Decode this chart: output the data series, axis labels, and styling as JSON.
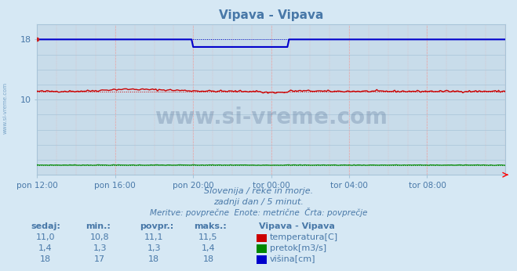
{
  "title": "Vipava - Vipava",
  "background_color": "#d6e8f4",
  "plot_bg_color": "#c8dcea",
  "grid_color": "#a8c4d8",
  "grid_color_red": "#e8a8a8",
  "text_color": "#4878a8",
  "xlim": [
    0,
    288
  ],
  "ylim": [
    0,
    20
  ],
  "yticks": [
    10,
    18
  ],
  "xtick_labels": [
    "pon 12:00",
    "pon 16:00",
    "pon 20:00",
    "tor 00:00",
    "tor 04:00",
    "tor 08:00"
  ],
  "xtick_positions": [
    0,
    48,
    96,
    144,
    192,
    240
  ],
  "temp_value": 11.1,
  "temp_min": 10.8,
  "temp_max": 11.5,
  "flow_value": 1.3,
  "height_value": 18.0,
  "height_dip_value": 17.0,
  "height_dip_start": 96,
  "height_dip_end": 155,
  "subtitle1": "Slovenija / reke in morje.",
  "subtitle2": "zadnji dan / 5 minut.",
  "subtitle3": "Meritve: povprečne  Enote: metrične  Črta: povprečje",
  "table_headers": [
    "sedaj:",
    "min.:",
    "povpr.:",
    "maks.:"
  ],
  "legend_title": "Vipava - Vipava",
  "table_data": [
    [
      11.0,
      10.8,
      11.1,
      11.5
    ],
    [
      1.4,
      1.3,
      1.3,
      1.4
    ],
    [
      18,
      17,
      18,
      18
    ]
  ],
  "legend_labels": [
    "temperatura[C]",
    "pretok[m3/s]",
    "višina[cm]"
  ],
  "line_colors": {
    "temperatura": "#cc0000",
    "pretok": "#008800",
    "visina": "#0000cc"
  },
  "box_colors": [
    "#cc0000",
    "#008800",
    "#0000cc"
  ],
  "watermark": "www.si-vreme.com",
  "watermark_color": "#1a3a6a",
  "sidebar_text": "www.si-vreme.com",
  "sidebar_color": "#6898c0"
}
